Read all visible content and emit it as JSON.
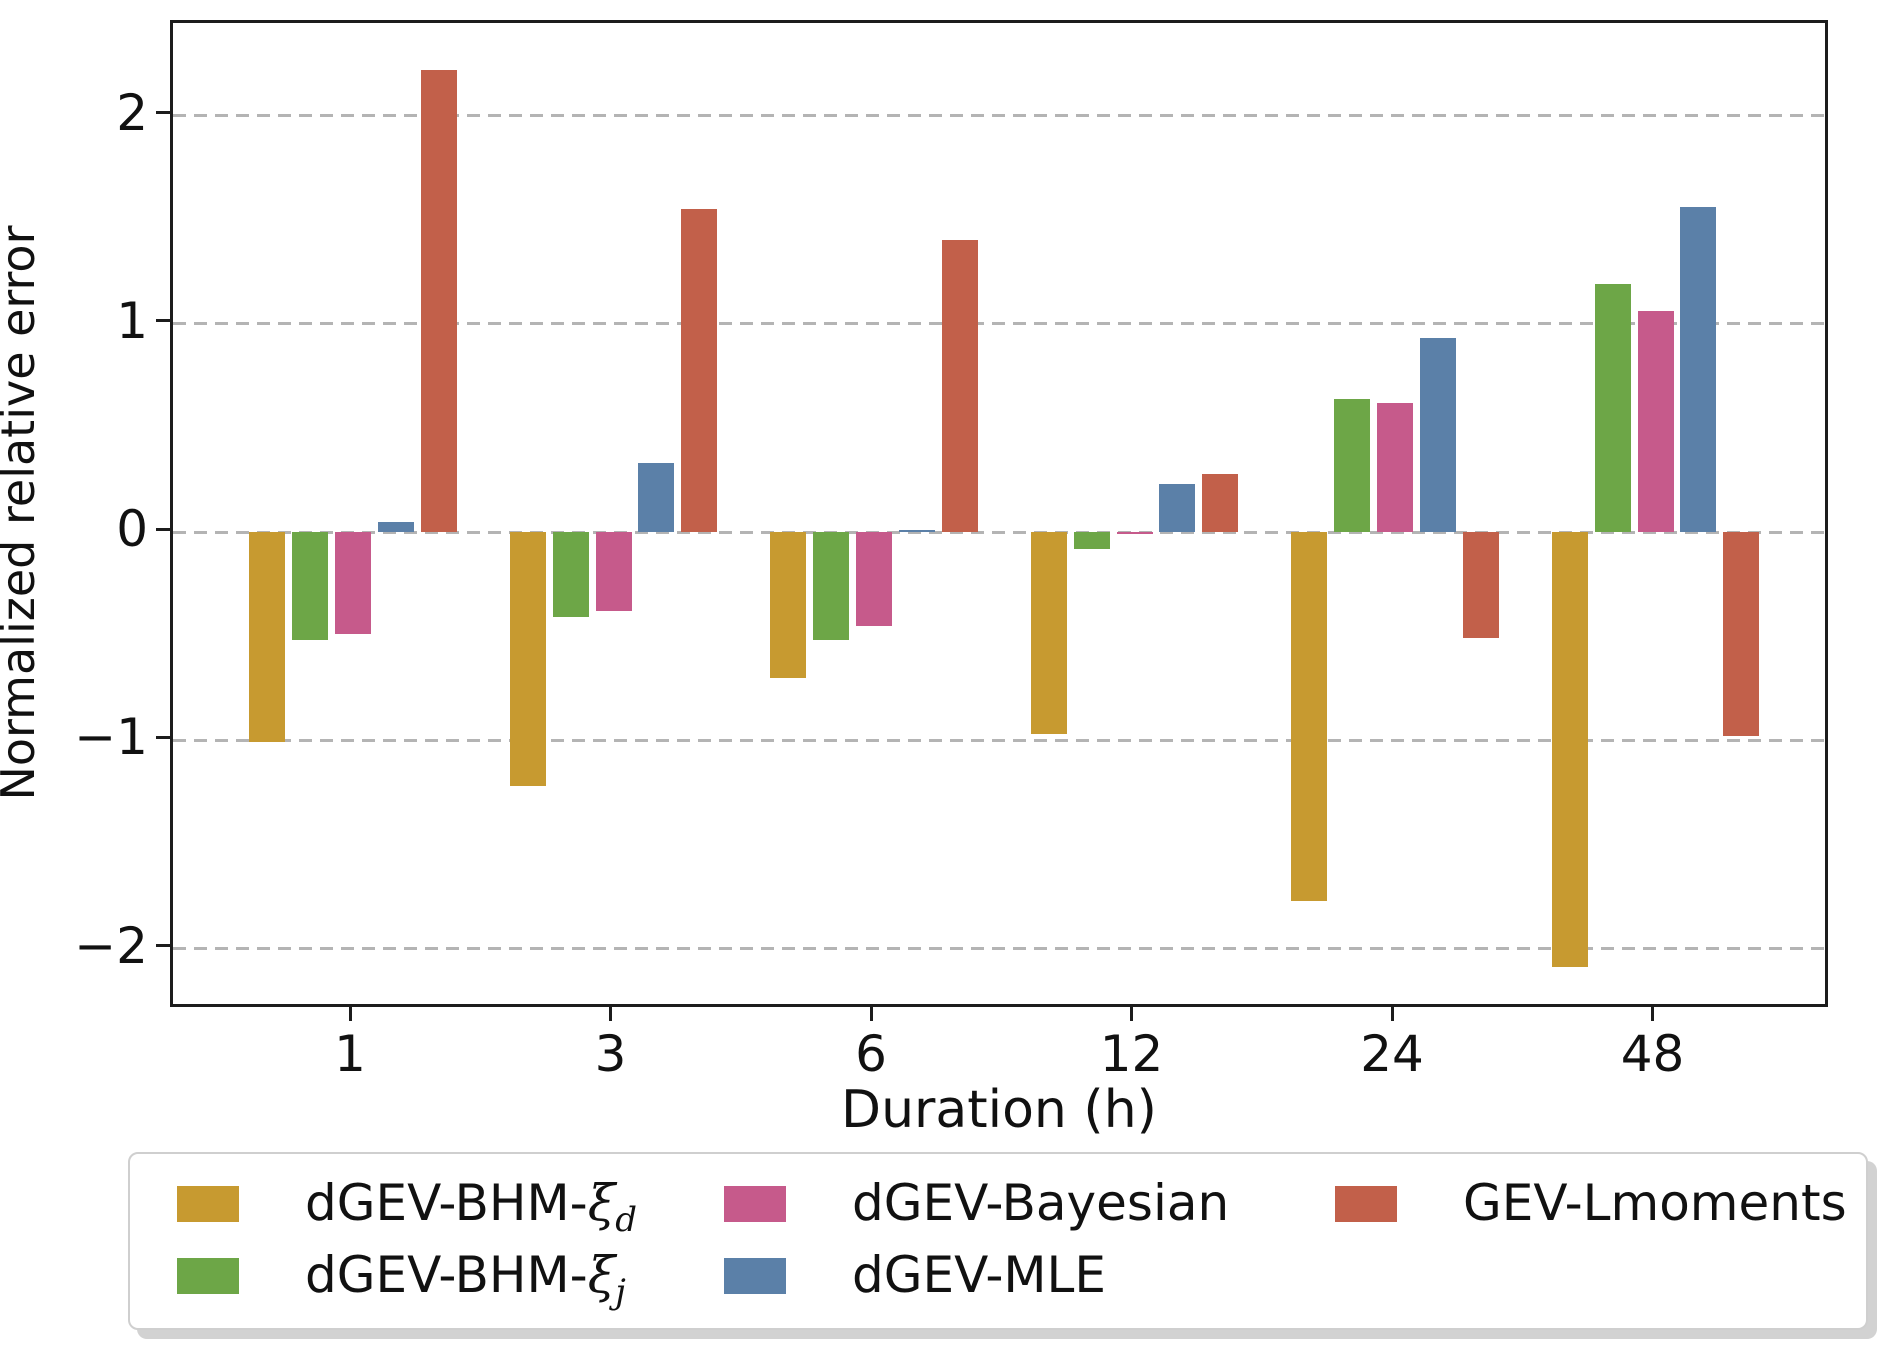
{
  "chart_data": {
    "type": "bar",
    "title": "",
    "xlabel": "Duration (h)",
    "ylabel": "Normalized relative error",
    "categories": [
      "1",
      "3",
      "6",
      "12",
      "24",
      "48"
    ],
    "series": [
      {
        "name": "dGEV-BHM-ξd",
        "legend_base": "dGEV-BHM-",
        "legend_math": "ξ",
        "legend_sub": "d",
        "color": "#c79a30",
        "values": [
          -1.01,
          -1.22,
          -0.7,
          -0.97,
          -1.77,
          -2.09
        ]
      },
      {
        "name": "dGEV-BHM-ξj",
        "legend_base": "dGEV-BHM-",
        "legend_math": "ξ",
        "legend_sub": "j",
        "color": "#6da647",
        "values": [
          -0.52,
          -0.41,
          -0.52,
          -0.08,
          0.64,
          1.19
        ]
      },
      {
        "name": "dGEV-Bayesian",
        "legend_base": "dGEV-Bayesian",
        "legend_math": "",
        "legend_sub": "",
        "color": "#c65a8b",
        "values": [
          -0.49,
          -0.38,
          -0.45,
          -0.01,
          0.62,
          1.06
        ]
      },
      {
        "name": "dGEV-MLE",
        "legend_base": "dGEV-MLE",
        "legend_math": "",
        "legend_sub": "",
        "color": "#5b80a8",
        "values": [
          0.05,
          0.33,
          0.01,
          0.23,
          0.93,
          1.56
        ]
      },
      {
        "name": "GEV-Lmoments",
        "legend_base": "GEV-Lmoments",
        "legend_math": "",
        "legend_sub": "",
        "color": "#c2604a",
        "values": [
          2.22,
          1.55,
          1.4,
          0.28,
          -0.51,
          -0.98
        ]
      }
    ],
    "yticks": [
      {
        "value": 2,
        "label": "2"
      },
      {
        "value": 1,
        "label": "1"
      },
      {
        "value": 0,
        "label": "0"
      },
      {
        "value": -1,
        "label": "−1"
      },
      {
        "value": -2,
        "label": "−2"
      }
    ],
    "ylim": [
      -2.3,
      2.45
    ],
    "grid": "horizontal-dashed",
    "grid_color": "#b4b4b4",
    "axis_color": "#1c1c1c",
    "legend_position": "bottom",
    "legend_columns": 3
  }
}
